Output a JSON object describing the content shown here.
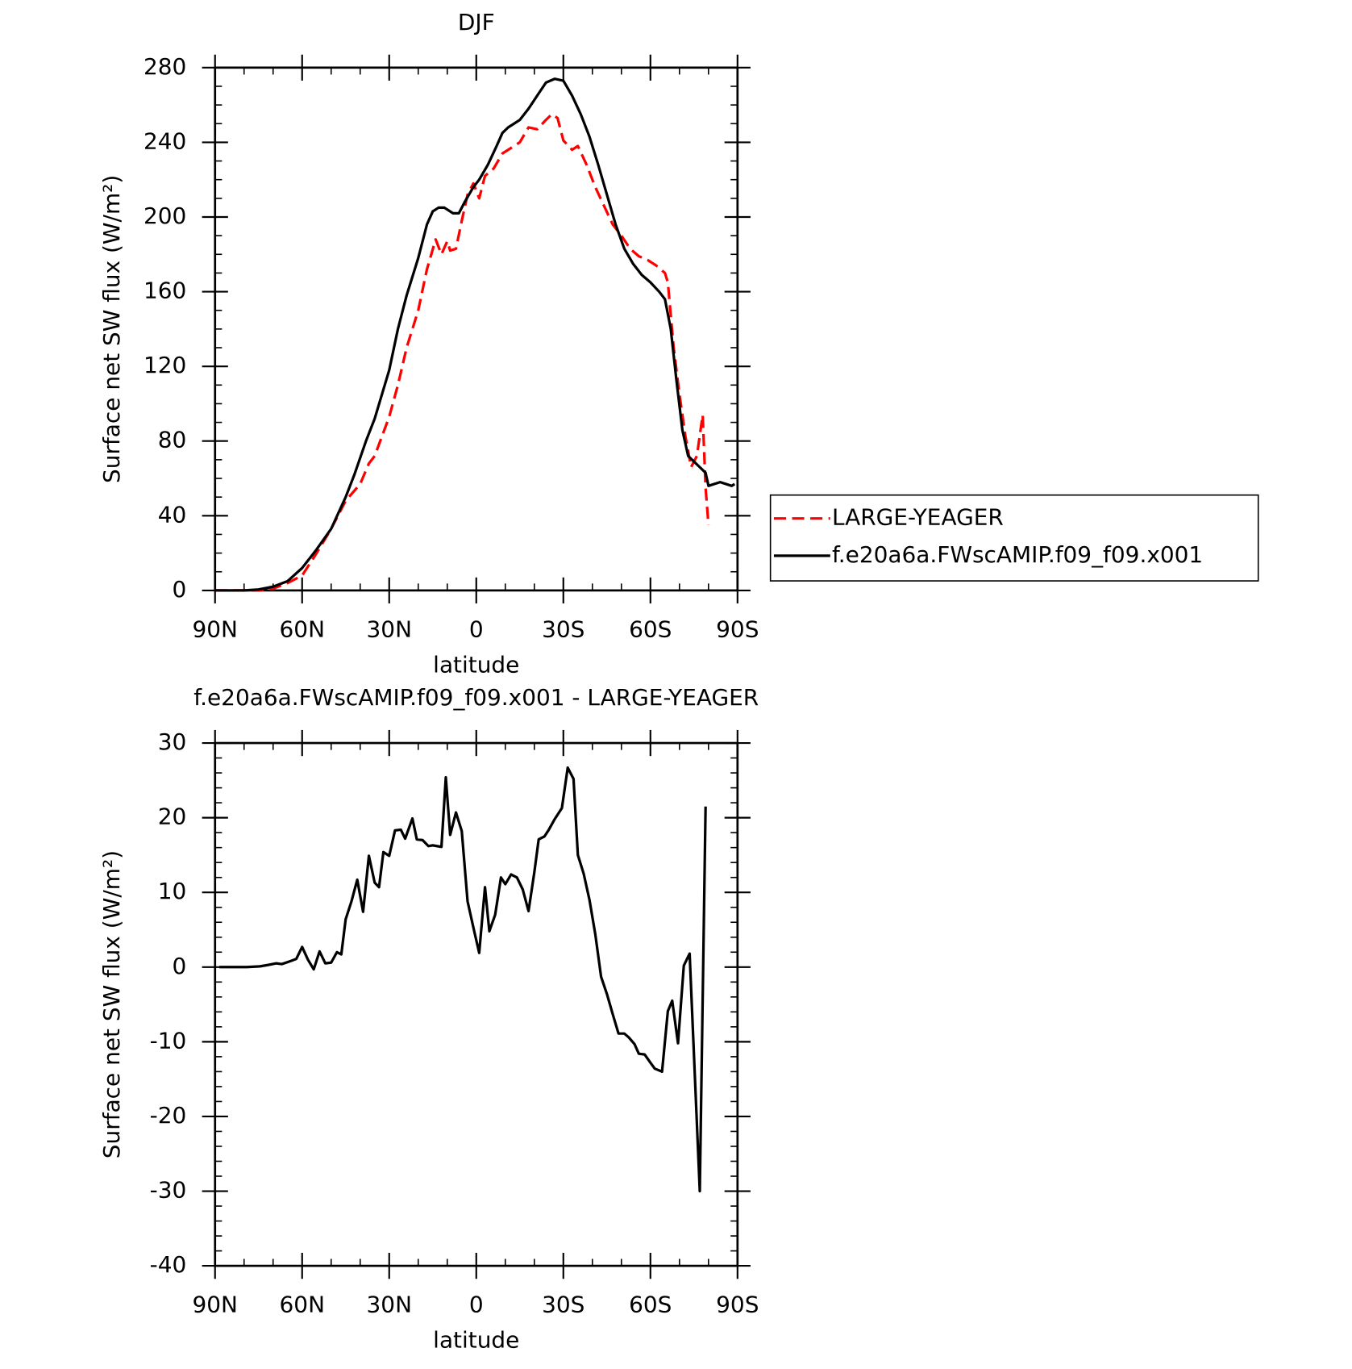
{
  "chart_data": [
    {
      "type": "line",
      "title": "DJF",
      "xlabel": "latitude",
      "ylabel": "Surface net SW flux (W/m²)",
      "xlim": [
        90,
        -90
      ],
      "xticks": [
        {
          "value": 90,
          "label": "90N"
        },
        {
          "value": 60,
          "label": "60N"
        },
        {
          "value": 30,
          "label": "30N"
        },
        0,
        {
          "value": -30,
          "label": "30S"
        },
        {
          "value": -60,
          "label": "60S"
        },
        {
          "value": -90,
          "label": "90S"
        }
      ],
      "ylim": [
        0,
        280
      ],
      "yticks": [
        0,
        40,
        80,
        120,
        160,
        200,
        240,
        280
      ],
      "legend": "outside right",
      "series": [
        {
          "name": "LARGE-YEAGER",
          "color": "#ff0000",
          "dash": true,
          "x": [
            90,
            80,
            75,
            70,
            65,
            60,
            55,
            50,
            45,
            40,
            37,
            35,
            30,
            27,
            24,
            20,
            17,
            14,
            12,
            10,
            9,
            7,
            5,
            3,
            1,
            -1,
            -3,
            -6,
            -9,
            -12,
            -15,
            -18,
            -21,
            -24,
            -26,
            -28,
            -30,
            -33,
            -35,
            -38,
            -41,
            -44,
            -47,
            -50,
            -53,
            -56,
            -59,
            -62,
            -65,
            -66,
            -68,
            -70,
            -72,
            -74,
            -76,
            -78,
            -79,
            -80
          ],
          "values": [
            0,
            0,
            0,
            1,
            4,
            8,
            20,
            33,
            48,
            57,
            68,
            72,
            93,
            110,
            130,
            150,
            172,
            188,
            180,
            187,
            182,
            183,
            198,
            212,
            218,
            210,
            222,
            226,
            234,
            237,
            240,
            248,
            247,
            252,
            255,
            253,
            241,
            236,
            238,
            228,
            216,
            206,
            196,
            190,
            183,
            179,
            177,
            174,
            170,
            165,
            130,
            105,
            83,
            66,
            72,
            94,
            55,
            35
          ]
        },
        {
          "name": "f.e20a6a.FWscAMIP.f09_f09.x001",
          "color": "#000000",
          "dash": false,
          "x": [
            90,
            80,
            75,
            70,
            65,
            60,
            55,
            50,
            45,
            42,
            38,
            35,
            30,
            27,
            24,
            20,
            17,
            15,
            13,
            11,
            8,
            6,
            4,
            1,
            -1,
            -4,
            -7,
            -9,
            -11,
            -15,
            -18,
            -21,
            -24,
            -27,
            -30,
            -33,
            -36,
            -39,
            -42,
            -45,
            -48,
            -51,
            -54,
            -57,
            -60,
            -63,
            -65,
            -67,
            -69,
            -71,
            -73,
            -75,
            -77,
            -79,
            -80,
            -82,
            -84,
            -86,
            -88,
            -89
          ],
          "values": [
            0,
            0,
            0.5,
            2,
            5,
            12,
            22,
            33,
            50,
            62,
            80,
            92,
            118,
            140,
            158,
            178,
            196,
            203,
            205,
            205,
            202,
            202,
            208,
            216,
            220,
            228,
            238,
            245,
            248,
            252,
            258,
            265,
            272,
            274,
            273,
            265,
            255,
            243,
            228,
            212,
            196,
            183,
            175,
            169,
            165,
            160,
            156,
            140,
            112,
            86,
            72,
            69,
            66,
            63,
            56,
            57,
            58,
            57,
            56,
            57
          ]
        }
      ]
    },
    {
      "type": "line",
      "title": "f.e20a6a.FWscAMIP.f09_f09.x001 - LARGE-YEAGER",
      "xlabel": "latitude",
      "ylabel": "Surface net SW flux (W/m²)",
      "xlim": [
        90,
        -90
      ],
      "xticks": [
        {
          "value": 90,
          "label": "90N"
        },
        {
          "value": 60,
          "label": "60N"
        },
        {
          "value": 30,
          "label": "30N"
        },
        0,
        {
          "value": -30,
          "label": "30S"
        },
        {
          "value": -60,
          "label": "60S"
        },
        {
          "value": -90,
          "label": "90S"
        }
      ],
      "ylim": [
        -40,
        30
      ],
      "yticks": [
        -40,
        -30,
        -20,
        -10,
        0,
        10,
        20,
        30
      ],
      "series": [
        {
          "color": "#000000",
          "dash": false,
          "x": [
            88.5,
            79,
            74.5,
            71.5,
            69,
            67,
            64,
            62,
            60,
            58,
            56,
            54,
            52,
            50,
            48,
            46.5,
            45,
            43,
            41,
            39,
            37,
            35,
            33.5,
            32,
            30,
            28,
            26,
            24.5,
            22,
            20.5,
            18.5,
            16.5,
            15,
            12,
            10.5,
            9,
            7,
            5,
            3,
            1,
            -1,
            -3,
            -4.5,
            -6.5,
            -8.5,
            -10,
            -12,
            -14,
            -16,
            -18,
            -20,
            -21.5,
            -23.5,
            -25,
            -27,
            -29.5,
            -31.5,
            -33.5,
            -35,
            -37,
            -39,
            -41,
            -43,
            -45,
            -47,
            -49,
            -51,
            -52.5,
            -54.5,
            -56,
            -58,
            -60,
            -61.5,
            -64,
            -66,
            -67.5,
            -69.5,
            -71.5,
            -73.5,
            -77,
            -79
          ],
          "values": [
            0,
            0,
            0.1,
            0.3,
            0.5,
            0.4,
            0.8,
            1.1,
            2.7,
            1.0,
            -0.3,
            2.1,
            0.5,
            0.6,
            2.0,
            1.7,
            6.4,
            8.8,
            11.7,
            7.4,
            14.9,
            11.3,
            10.7,
            15.4,
            14.9,
            18.3,
            18.4,
            17.2,
            19.9,
            17.1,
            17.0,
            16.2,
            16.3,
            16.1,
            25.4,
            17.7,
            20.7,
            18.2,
            8.8,
            5.3,
            1.9,
            10.7,
            4.8,
            7.0,
            12.0,
            11.1,
            12.4,
            12.0,
            10.4,
            7.5,
            12.7,
            17.1,
            17.5,
            18.4,
            19.8,
            21.3,
            26.7,
            25.2,
            15.0,
            12.5,
            9.0,
            4.4,
            -1.3,
            -3.6,
            -6.3,
            -8.9,
            -8.9,
            -9.4,
            -10.3,
            -11.6,
            -11.7,
            -12.8,
            -13.6,
            -14.0,
            -5.9,
            -4.5,
            -10.2,
            0.2,
            1.8,
            -30.0,
            21.5
          ]
        }
      ]
    }
  ]
}
